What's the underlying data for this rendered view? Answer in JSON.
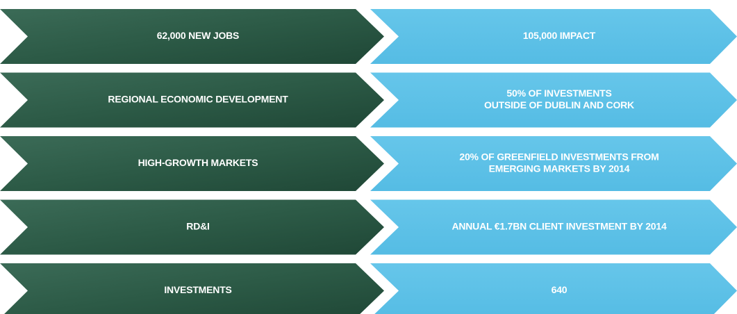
{
  "rows": [
    {
      "left": "62,000 NEW JOBS",
      "right": [
        "105,000 IMPACT"
      ]
    },
    {
      "left": "REGIONAL ECONOMIC DEVELOPMENT",
      "right": [
        "50% OF INVESTMENTS",
        "OUTSIDE OF DUBLIN AND CORK"
      ]
    },
    {
      "left": "HIGH-GROWTH MARKETS",
      "right": [
        "20% OF GREENFIELD INVESTMENTS FROM",
        "EMERGING MARKETS BY 2014"
      ]
    },
    {
      "left": "RD&I",
      "right": [
        "ANNUAL €1.7BN CLIENT INVESTMENT BY 2014"
      ]
    },
    {
      "left": "INVESTMENTS",
      "right": [
        "640"
      ]
    }
  ]
}
